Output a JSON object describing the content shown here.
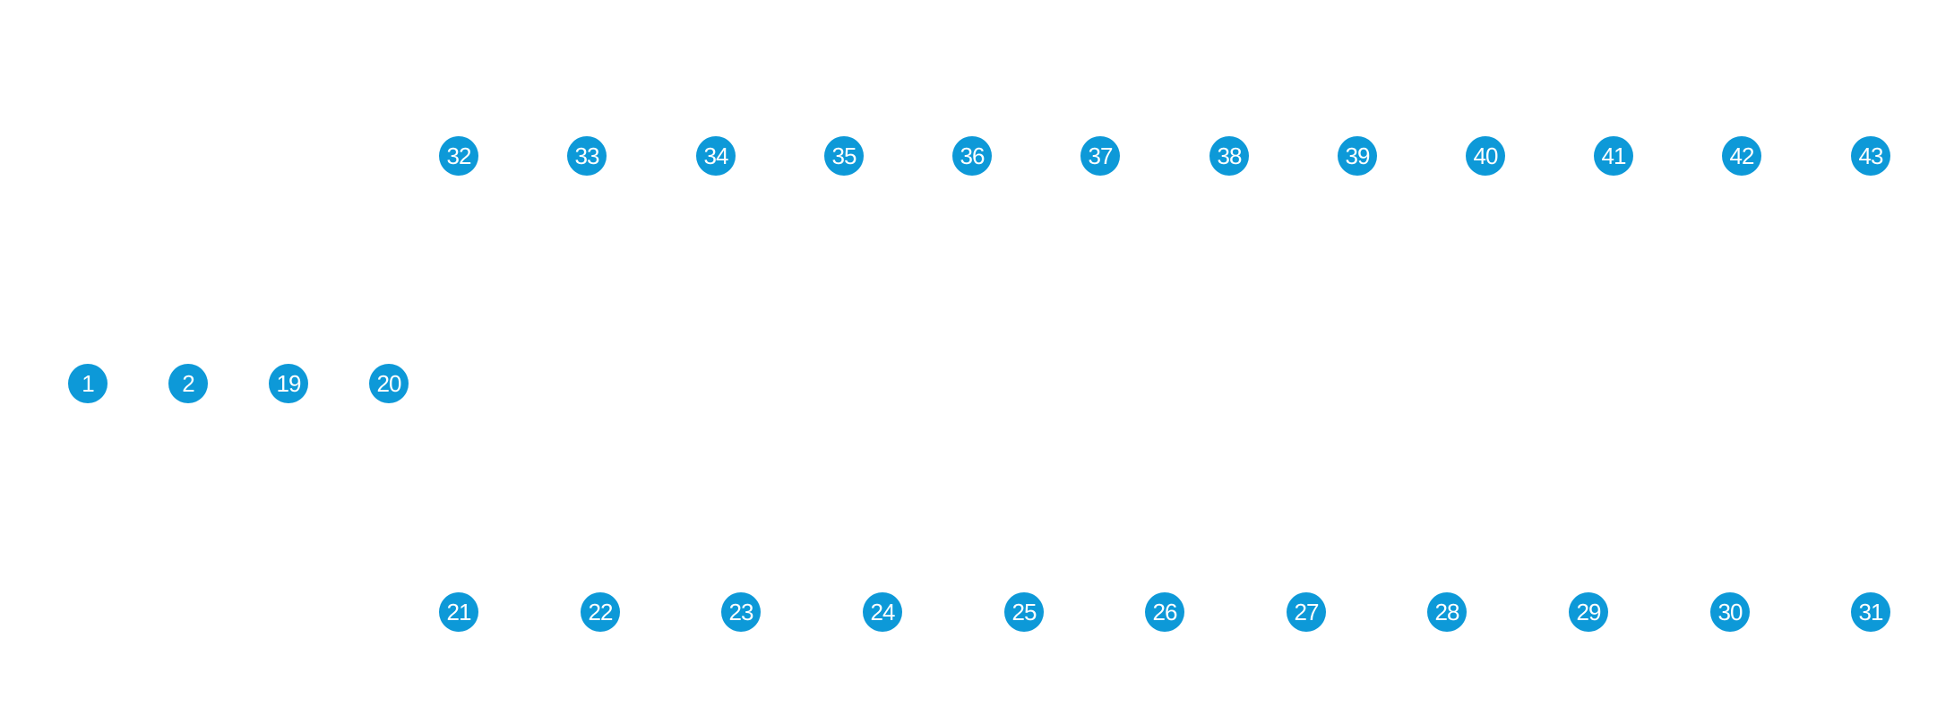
{
  "colors": {
    "node_fill": "#0d99d8",
    "node_text": "#ffffff",
    "background": "#ffffff"
  },
  "rows": [
    {
      "name": "top-row",
      "labels": [
        "32",
        "33",
        "34",
        "35",
        "36",
        "37",
        "38",
        "39",
        "40",
        "41",
        "42",
        "43"
      ]
    },
    {
      "name": "middle-row",
      "labels": [
        "1",
        "2",
        "19",
        "20"
      ]
    },
    {
      "name": "bottom-row",
      "labels": [
        "21",
        "22",
        "23",
        "24",
        "25",
        "26",
        "27",
        "28",
        "29",
        "30",
        "31"
      ]
    }
  ]
}
